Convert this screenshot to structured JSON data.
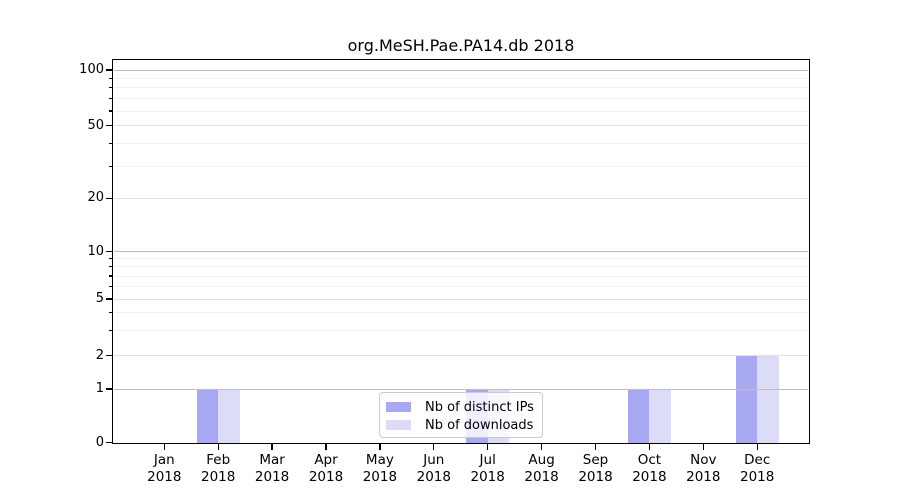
{
  "title": "org.MeSH.Pae.PA14.db 2018",
  "chart_data": {
    "type": "bar",
    "title": "org.MeSH.Pae.PA14.db 2018",
    "categories": [
      {
        "month": "Jan",
        "year": "2018"
      },
      {
        "month": "Feb",
        "year": "2018"
      },
      {
        "month": "Mar",
        "year": "2018"
      },
      {
        "month": "Apr",
        "year": "2018"
      },
      {
        "month": "May",
        "year": "2018"
      },
      {
        "month": "Jun",
        "year": "2018"
      },
      {
        "month": "Jul",
        "year": "2018"
      },
      {
        "month": "Aug",
        "year": "2018"
      },
      {
        "month": "Sep",
        "year": "2018"
      },
      {
        "month": "Oct",
        "year": "2018"
      },
      {
        "month": "Nov",
        "year": "2018"
      },
      {
        "month": "Dec",
        "year": "2018"
      }
    ],
    "series": [
      {
        "name": "Nb of distinct IPs",
        "color": "#a9a9f3",
        "values": [
          0,
          1,
          0,
          0,
          0,
          0,
          1,
          0,
          0,
          1,
          0,
          2
        ]
      },
      {
        "name": "Nb of downloads",
        "color": "#dcdcf8",
        "values": [
          0,
          1,
          0,
          0,
          0,
          0,
          1,
          0,
          0,
          1,
          0,
          2
        ]
      }
    ],
    "xlabel": "",
    "ylabel": "",
    "yscale": "symlog",
    "ylim": [
      0,
      100
    ],
    "y_ticks": [
      0,
      1,
      2,
      5,
      10,
      20,
      50,
      100
    ],
    "y_tick_labels": [
      "0",
      "1",
      "2",
      "5",
      "10",
      "20",
      "50",
      "100"
    ],
    "y_minor_ticks": [
      3,
      4,
      6,
      7,
      8,
      9,
      30,
      40,
      60,
      70,
      80,
      90
    ],
    "grid": "horizontal",
    "legend_position": "inside-bottom-center"
  },
  "colors": {
    "bar_distinct_ips": "#a9a9f3",
    "bar_downloads": "#dcdcf8",
    "grid_decade": "#bdbdbd",
    "grid_mid": "#e2e2e2",
    "grid_minor": "#f0f0f0",
    "axis": "#000000",
    "background": "#ffffff",
    "legend_border": "#cccccc"
  }
}
